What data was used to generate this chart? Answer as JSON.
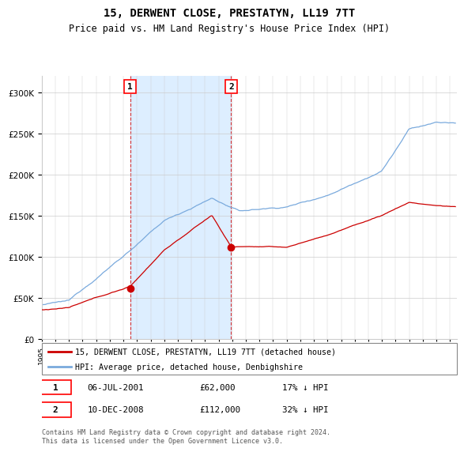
{
  "title": "15, DERWENT CLOSE, PRESTATYN, LL19 7TT",
  "subtitle": "Price paid vs. HM Land Registry's House Price Index (HPI)",
  "legend_line1": "15, DERWENT CLOSE, PRESTATYN, LL19 7TT (detached house)",
  "legend_line2": "HPI: Average price, detached house, Denbighshire",
  "annotation1_date": "06-JUL-2001",
  "annotation1_price": "£62,000",
  "annotation1_hpi": "17% ↓ HPI",
  "annotation2_date": "10-DEC-2008",
  "annotation2_price": "£112,000",
  "annotation2_hpi": "32% ↓ HPI",
  "footnote": "Contains HM Land Registry data © Crown copyright and database right 2024.\nThis data is licensed under the Open Government Licence v3.0.",
  "sale1_x": 2001.5,
  "sale1_y": 62000,
  "sale2_x": 2008.92,
  "sale2_y": 112000,
  "shaded_region1_start": 2001.5,
  "shaded_region1_end": 2008.92,
  "red_color": "#cc0000",
  "blue_color": "#7aaadd",
  "shade_color": "#ddeeff",
  "ylim": [
    0,
    320000
  ],
  "xlim_start": 1995.0,
  "xlim_end": 2025.5
}
